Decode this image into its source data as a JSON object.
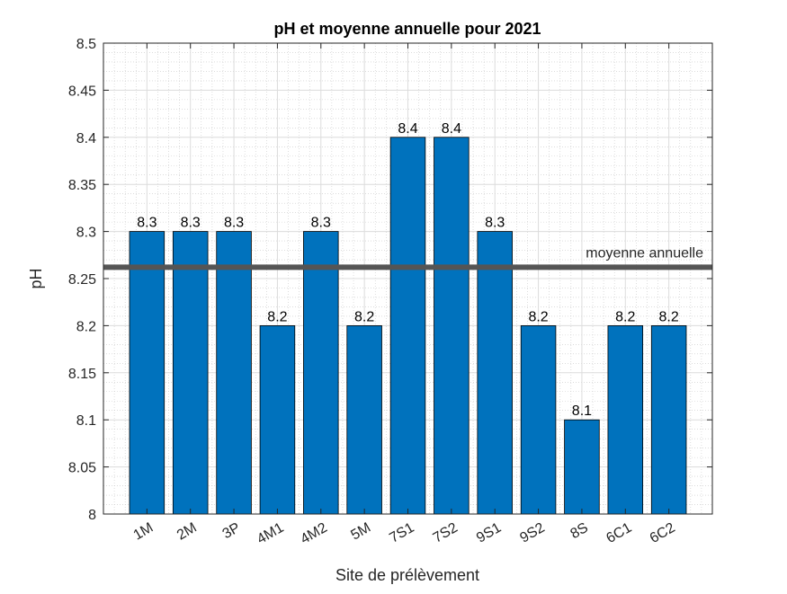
{
  "chart_data": {
    "type": "bar",
    "title": "pH et moyenne annuelle pour 2021",
    "xlabel": "Site de prélèvement",
    "ylabel": "pH",
    "ylim": [
      8,
      8.5
    ],
    "yticks": [
      "8",
      "8.05",
      "8.1",
      "8.15",
      "8.2",
      "8.25",
      "8.3",
      "8.35",
      "8.4",
      "8.45",
      "8.5"
    ],
    "categories": [
      "1M",
      "2M",
      "3P",
      "4M1",
      "4M2",
      "5M",
      "7S1",
      "7S2",
      "9S1",
      "9S2",
      "8S",
      "6C1",
      "6C2"
    ],
    "values": [
      8.3,
      8.3,
      8.3,
      8.2,
      8.3,
      8.2,
      8.4,
      8.4,
      8.3,
      8.2,
      8.1,
      8.2,
      8.2
    ],
    "data_labels": [
      "8.3",
      "8.3",
      "8.3",
      "8.2",
      "8.3",
      "8.2",
      "8.4",
      "8.4",
      "8.3",
      "8.2",
      "8.1",
      "8.2",
      "8.2"
    ],
    "reference_line": {
      "label": "moyenne annuelle",
      "value": 8.262
    },
    "grid": true,
    "minor_grid": true,
    "colors": {
      "bar": "#0072BD",
      "reference_line": "#555555"
    }
  }
}
